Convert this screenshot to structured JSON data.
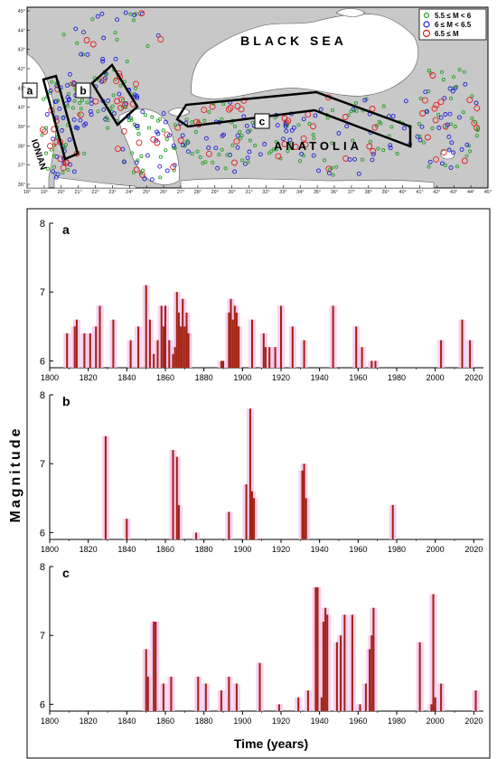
{
  "map": {
    "sea_label": "BLACK SEA",
    "land_label": "ANATOLIA",
    "sea_side_label": "IONIAN",
    "region_labels": [
      "a",
      "b",
      "c"
    ],
    "legend": [
      {
        "label": "5.5 ≤ M < 6",
        "color": "#2ca02c"
      },
      {
        "label": "6 ≤ M < 6.5",
        "color": "#1f1fd6"
      },
      {
        "label": "6.5 ≤ M",
        "color": "#e02020"
      }
    ],
    "lon_ticks": [
      "18°",
      "19°",
      "20°",
      "21°",
      "22°",
      "23°",
      "24°",
      "25°",
      "26°",
      "27°",
      "28°",
      "29°",
      "30°",
      "31°",
      "32°",
      "33°",
      "34°",
      "35°",
      "36°",
      "37°",
      "38°",
      "39°",
      "40°",
      "41°",
      "42°",
      "43°",
      "44°",
      "45°"
    ],
    "lat_ticks": [
      "45°",
      "44°",
      "43°",
      "42°",
      "41°",
      "40°",
      "39°",
      "38°",
      "37°",
      "36°"
    ],
    "colors": {
      "land": "#c8c8c8",
      "sea": "#ffffff",
      "box": "#000000"
    }
  },
  "chart_data": {
    "type": "bar",
    "ylabel": "Magnitude",
    "xlabel": "Time (years)",
    "xlim": [
      1800,
      2025
    ],
    "x_ticks": [
      1800,
      1820,
      1840,
      1860,
      1880,
      1900,
      1920,
      1940,
      1960,
      1980,
      2000,
      2020
    ],
    "colors": {
      "bar": "#a02010",
      "bar_bright": "#ff1010",
      "halo": "#f5c6ec"
    },
    "panels": [
      {
        "label": "a",
        "ylim": [
          5.9,
          8
        ],
        "y_ticks": [
          6,
          7,
          8
        ],
        "events": [
          {
            "year": 1809,
            "m": 6.4
          },
          {
            "year": 1813,
            "m": 6.5
          },
          {
            "year": 1814,
            "m": 6.6
          },
          {
            "year": 1818,
            "m": 6.4
          },
          {
            "year": 1821,
            "m": 6.4
          },
          {
            "year": 1824,
            "m": 6.5
          },
          {
            "year": 1826,
            "m": 6.8
          },
          {
            "year": 1833,
            "m": 6.6
          },
          {
            "year": 1842,
            "m": 6.3
          },
          {
            "year": 1846,
            "m": 6.5
          },
          {
            "year": 1850,
            "m": 7.1
          },
          {
            "year": 1852,
            "m": 6.6
          },
          {
            "year": 1854,
            "m": 6.1
          },
          {
            "year": 1856,
            "m": 6.3
          },
          {
            "year": 1858,
            "m": 6.8
          },
          {
            "year": 1859,
            "m": 6.5
          },
          {
            "year": 1860,
            "m": 6.8
          },
          {
            "year": 1862,
            "m": 6.3
          },
          {
            "year": 1864,
            "m": 6.1
          },
          {
            "year": 1865,
            "m": 6.2
          },
          {
            "year": 1866,
            "m": 7.0
          },
          {
            "year": 1867,
            "m": 6.7
          },
          {
            "year": 1868,
            "m": 6.5
          },
          {
            "year": 1869,
            "m": 6.9
          },
          {
            "year": 1870,
            "m": 6.5
          },
          {
            "year": 1871,
            "m": 6.7
          },
          {
            "year": 1872,
            "m": 6.4
          },
          {
            "year": 1889,
            "m": 6.0
          },
          {
            "year": 1890,
            "m": 6.0
          },
          {
            "year": 1893,
            "m": 6.7
          },
          {
            "year": 1894,
            "m": 6.9
          },
          {
            "year": 1895,
            "m": 6.6
          },
          {
            "year": 1896,
            "m": 6.8
          },
          {
            "year": 1897,
            "m": 6.7
          },
          {
            "year": 1898,
            "m": 6.5
          },
          {
            "year": 1905,
            "m": 6.6
          },
          {
            "year": 1911,
            "m": 6.4
          },
          {
            "year": 1912,
            "m": 6.2
          },
          {
            "year": 1914,
            "m": 6.2
          },
          {
            "year": 1917,
            "m": 6.2
          },
          {
            "year": 1920,
            "m": 6.8
          },
          {
            "year": 1926,
            "m": 6.5
          },
          {
            "year": 1932,
            "m": 6.3
          },
          {
            "year": 1947,
            "m": 6.8
          },
          {
            "year": 1959,
            "m": 6.5
          },
          {
            "year": 1962,
            "m": 6.2
          },
          {
            "year": 1967,
            "m": 6.0
          },
          {
            "year": 1969,
            "m": 6.0
          },
          {
            "year": 2003,
            "m": 6.3
          },
          {
            "year": 2014,
            "m": 6.6
          },
          {
            "year": 2018,
            "m": 6.3
          }
        ]
      },
      {
        "label": "b",
        "ylim": [
          5.9,
          8
        ],
        "y_ticks": [
          6,
          7,
          8
        ],
        "events": [
          {
            "year": 1829,
            "m": 7.4
          },
          {
            "year": 1840,
            "m": 6.2
          },
          {
            "year": 1864,
            "m": 7.2
          },
          {
            "year": 1866,
            "m": 7.1
          },
          {
            "year": 1867,
            "m": 6.4
          },
          {
            "year": 1876,
            "m": 6.0
          },
          {
            "year": 1893,
            "m": 6.3
          },
          {
            "year": 1902,
            "m": 6.7
          },
          {
            "year": 1904,
            "m": 7.8
          },
          {
            "year": 1905,
            "m": 6.6
          },
          {
            "year": 1906,
            "m": 6.5
          },
          {
            "year": 1931,
            "m": 6.9
          },
          {
            "year": 1932,
            "m": 7.0
          },
          {
            "year": 1933,
            "m": 6.5
          },
          {
            "year": 1978,
            "m": 6.4
          }
        ]
      },
      {
        "label": "c",
        "ylim": [
          5.9,
          8
        ],
        "y_ticks": [
          6,
          7,
          8
        ],
        "events": [
          {
            "year": 1850,
            "m": 6.8
          },
          {
            "year": 1851,
            "m": 6.4
          },
          {
            "year": 1854,
            "m": 7.2
          },
          {
            "year": 1855,
            "m": 7.2
          },
          {
            "year": 1859,
            "m": 6.3
          },
          {
            "year": 1863,
            "m": 6.4
          },
          {
            "year": 1877,
            "m": 6.4
          },
          {
            "year": 1881,
            "m": 6.3
          },
          {
            "year": 1889,
            "m": 6.2
          },
          {
            "year": 1893,
            "m": 6.4
          },
          {
            "year": 1897,
            "m": 6.3
          },
          {
            "year": 1909,
            "m": 6.6
          },
          {
            "year": 1919,
            "m": 6.0
          },
          {
            "year": 1929,
            "m": 6.1
          },
          {
            "year": 1934,
            "m": 6.2
          },
          {
            "year": 1938,
            "m": 7.7
          },
          {
            "year": 1939,
            "m": 7.7
          },
          {
            "year": 1941,
            "m": 6.1
          },
          {
            "year": 1942,
            "m": 7.2
          },
          {
            "year": 1943,
            "m": 7.4
          },
          {
            "year": 1944,
            "m": 7.3
          },
          {
            "year": 1949,
            "m": 6.9
          },
          {
            "year": 1951,
            "m": 7.0
          },
          {
            "year": 1953,
            "m": 7.3
          },
          {
            "year": 1957,
            "m": 7.3
          },
          {
            "year": 1961,
            "m": 6.0
          },
          {
            "year": 1964,
            "m": 6.3
          },
          {
            "year": 1966,
            "m": 6.8
          },
          {
            "year": 1967,
            "m": 7.0
          },
          {
            "year": 1968,
            "m": 7.4
          },
          {
            "year": 1992,
            "m": 6.9
          },
          {
            "year": 1998,
            "m": 6.0
          },
          {
            "year": 1999,
            "m": 7.6
          },
          {
            "year": 2000,
            "m": 6.1
          },
          {
            "year": 2003,
            "m": 6.3
          },
          {
            "year": 2021,
            "m": 6.2
          }
        ]
      }
    ]
  }
}
